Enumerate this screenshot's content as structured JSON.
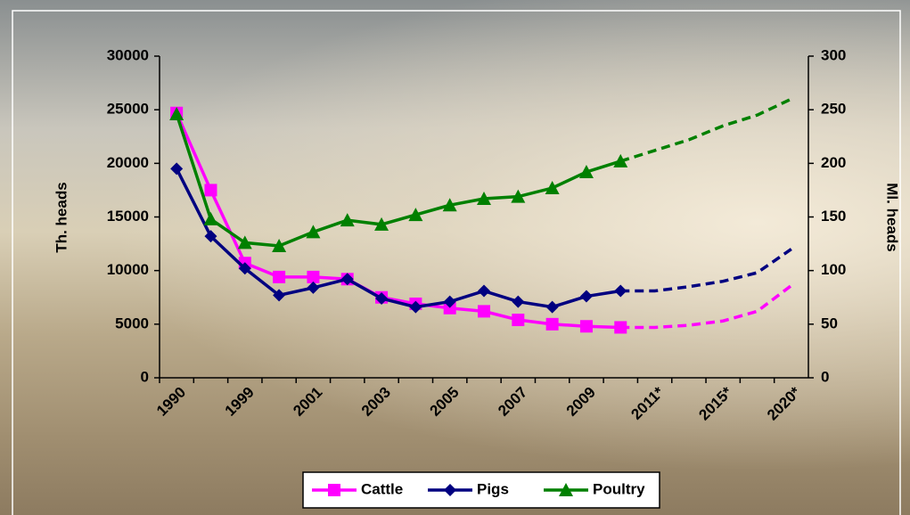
{
  "chart_data": {
    "type": "line",
    "categories": [
      "1990",
      null,
      "1999",
      null,
      "2001",
      null,
      "2003",
      null,
      "2005",
      null,
      "2007",
      null,
      "2009",
      null,
      "2011*",
      null,
      "2015*",
      null,
      "2020*"
    ],
    "y_label": "Th. heads",
    "y2_label": "Ml. heads",
    "ylim": [
      0,
      30000
    ],
    "yticks": [
      0,
      5000,
      10000,
      15000,
      20000,
      25000,
      30000
    ],
    "y2lim": [
      0,
      300
    ],
    "y2ticks": [
      0,
      50,
      100,
      150,
      200,
      250,
      300
    ],
    "series": [
      {
        "name": "Cattle",
        "color": "#ff00ff",
        "marker": "square",
        "values": [
          24700,
          17500,
          10700,
          9400,
          9400,
          9200,
          7500,
          6900,
          6500,
          6200,
          5400,
          5000,
          4800,
          4700,
          4700,
          4900,
          5300,
          6200,
          8600
        ]
      },
      {
        "name": "Pigs",
        "color": "#000080",
        "marker": "diamond",
        "values": [
          19500,
          13200,
          10200,
          7700,
          8400,
          9200,
          7400,
          6600,
          7100,
          8100,
          7100,
          6600,
          7600,
          8100,
          8100,
          8500,
          9000,
          9800,
          12000
        ]
      },
      {
        "name": "Poultry",
        "color": "#008000",
        "marker": "triangle",
        "axis": "y2",
        "values": [
          246,
          148,
          126,
          123,
          136,
          147,
          143,
          152,
          161,
          167,
          169,
          177,
          192,
          202,
          212,
          222,
          235,
          245,
          260
        ]
      }
    ]
  }
}
